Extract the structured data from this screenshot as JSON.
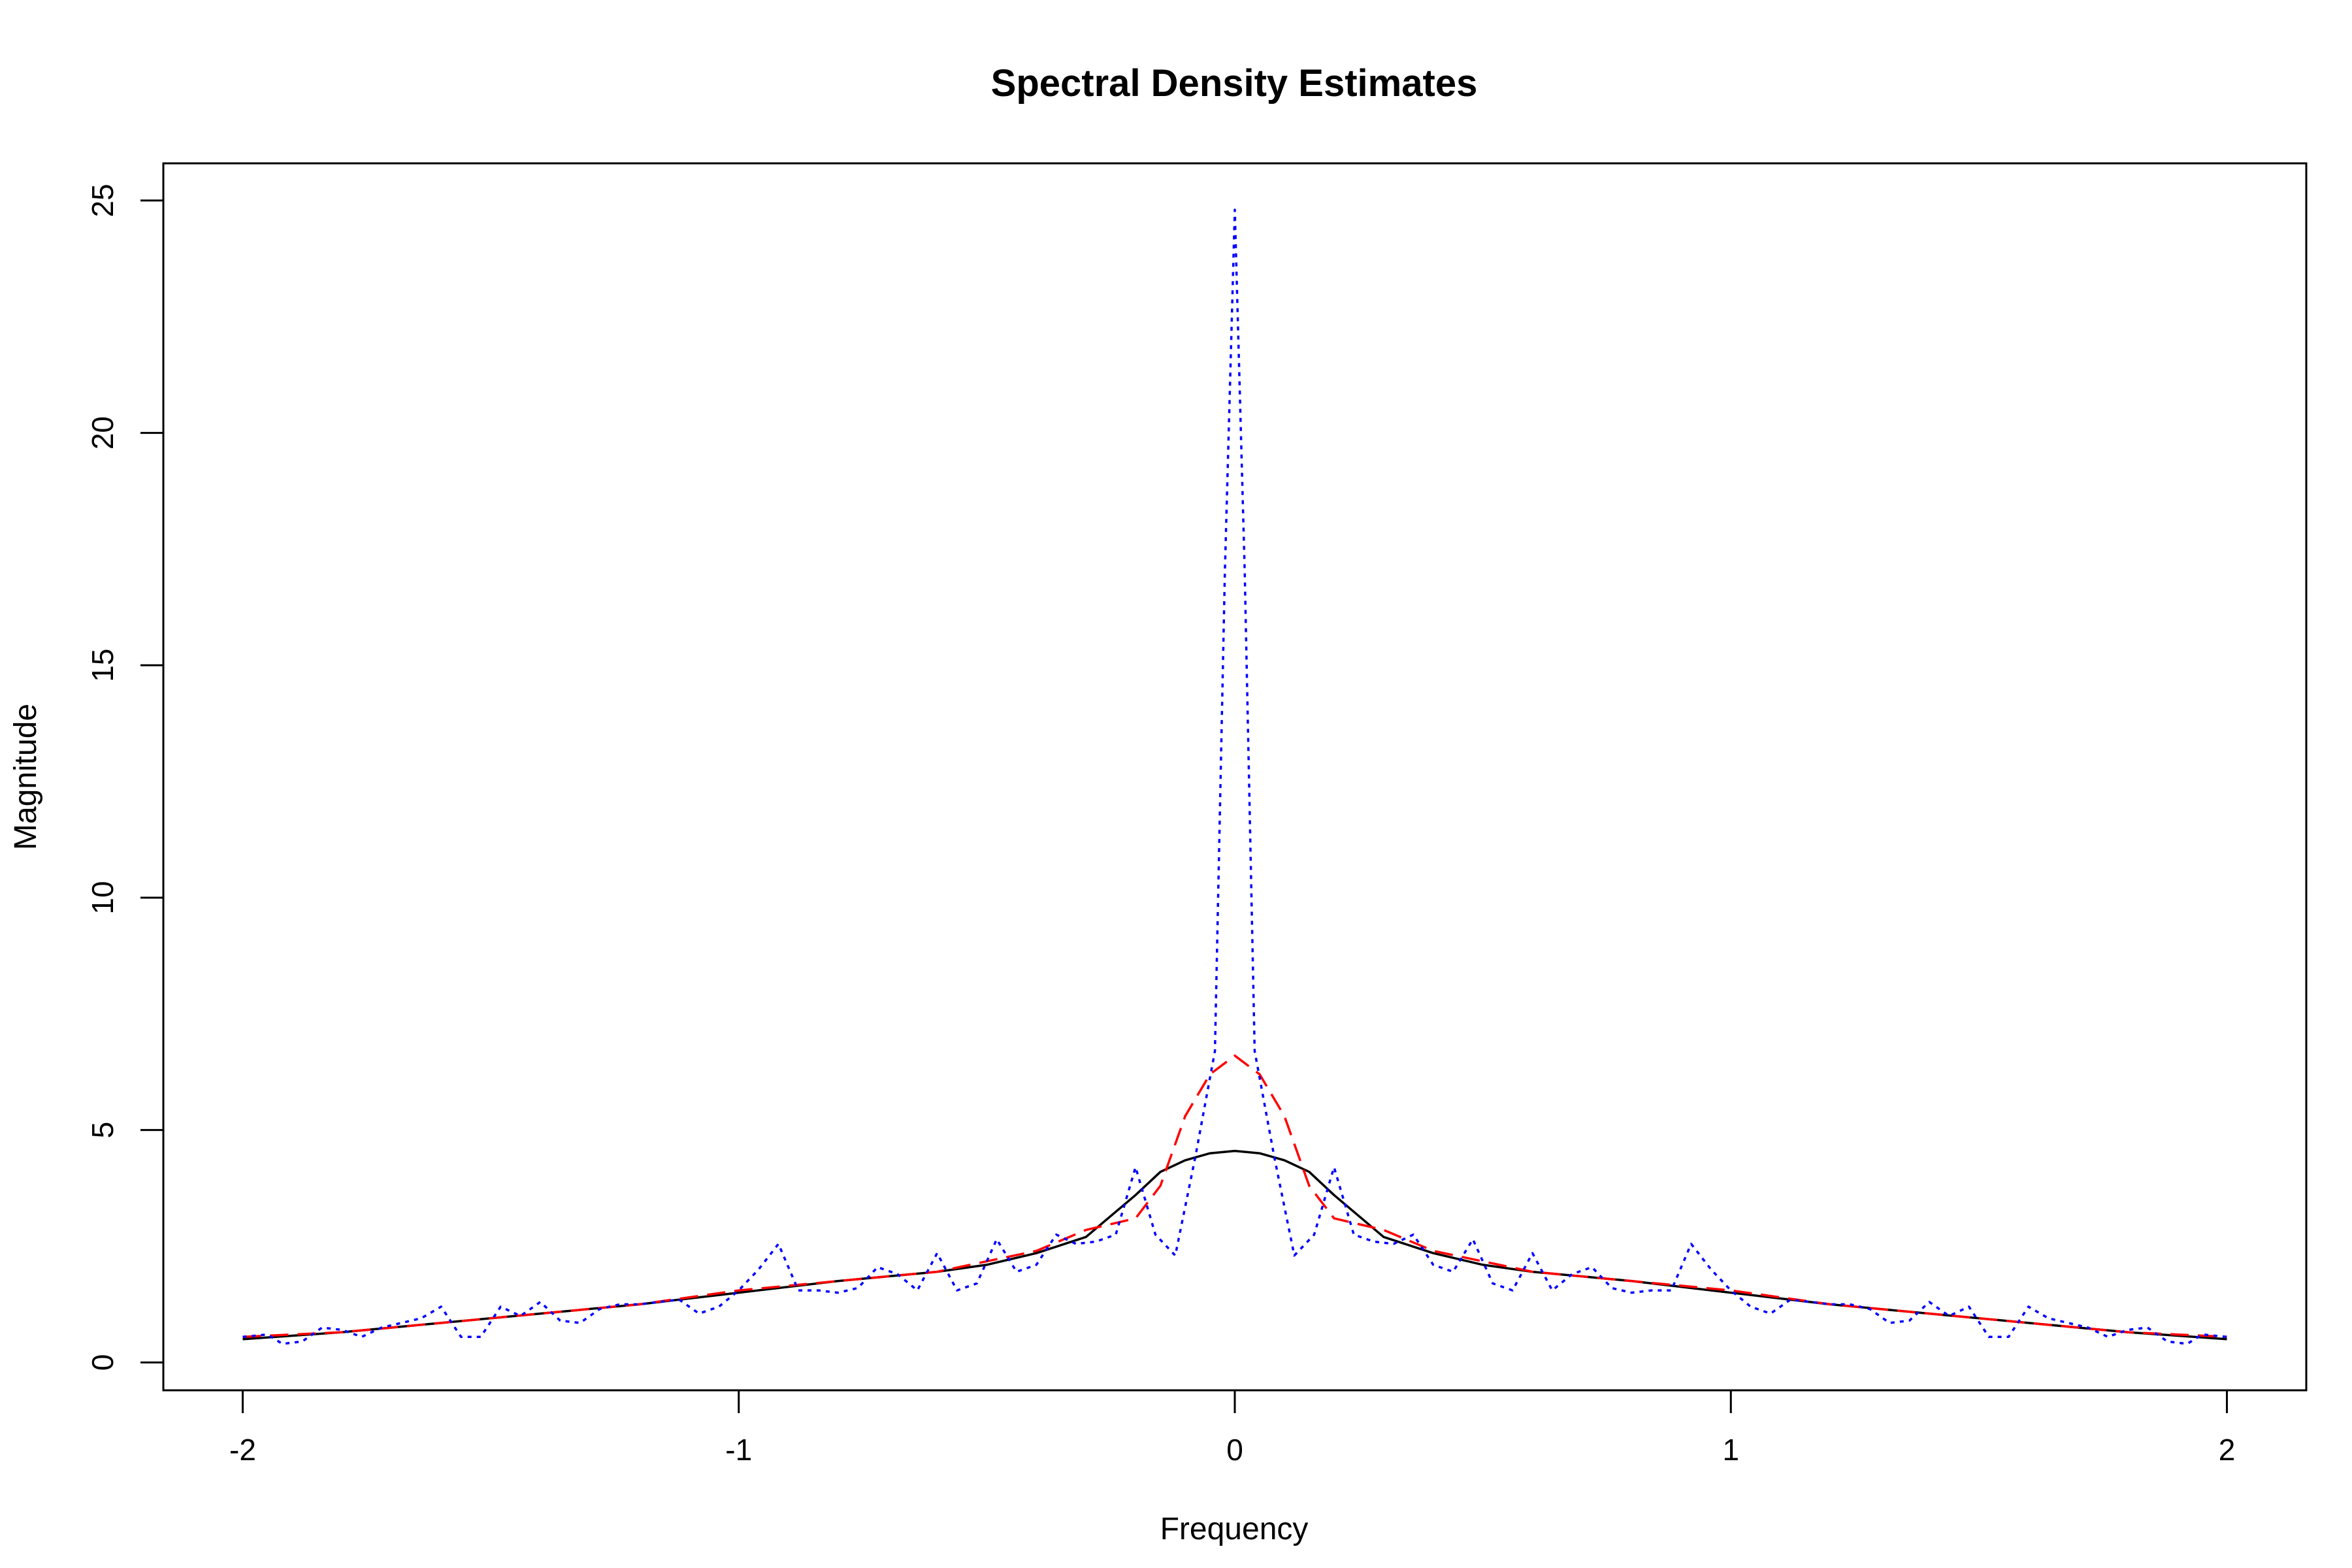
{
  "chart_data": {
    "type": "line",
    "title": "Spectral Density Estimates",
    "xlabel": "Frequency",
    "ylabel": "Magnitude",
    "xlim": [
      -2.16,
      2.16
    ],
    "ylim": [
      -0.6,
      25.8
    ],
    "xticks": [
      -2,
      -1,
      0,
      1,
      2
    ],
    "yticks": [
      0,
      5,
      10,
      15,
      20,
      25
    ],
    "grid": false,
    "legend": "none",
    "series": [
      {
        "color": "#000000",
        "style": "solid",
        "x": [
          -2,
          -1.8,
          -1.6,
          -1.4,
          -1.2,
          -1.0,
          -0.8,
          -0.6,
          -0.5,
          -0.4,
          -0.3,
          -0.2,
          -0.15,
          -0.1,
          -0.05,
          0,
          0.05,
          0.1,
          0.15,
          0.2,
          0.3,
          0.4,
          0.5,
          0.6,
          0.8,
          1.0,
          1.2,
          1.4,
          1.6,
          1.8,
          2
        ],
        "y": [
          0.5,
          0.65,
          0.85,
          1.05,
          1.25,
          1.5,
          1.75,
          1.95,
          2.1,
          2.35,
          2.7,
          3.6,
          4.1,
          4.35,
          4.5,
          4.55,
          4.5,
          4.35,
          4.1,
          3.6,
          2.7,
          2.35,
          2.1,
          1.95,
          1.75,
          1.5,
          1.25,
          1.05,
          0.85,
          0.65,
          0.5
        ]
      },
      {
        "color": "#ff0000",
        "style": "dashed",
        "x": [
          -2,
          -1.8,
          -1.6,
          -1.4,
          -1.2,
          -1.0,
          -0.8,
          -0.6,
          -0.4,
          -0.3,
          -0.2,
          -0.15,
          -0.1,
          -0.05,
          0,
          0.05,
          0.1,
          0.15,
          0.2,
          0.3,
          0.4,
          0.6,
          0.8,
          1.0,
          1.2,
          1.4,
          1.6,
          1.8,
          2
        ],
        "y": [
          0.55,
          0.65,
          0.85,
          1.05,
          1.25,
          1.55,
          1.75,
          1.95,
          2.4,
          2.85,
          3.1,
          3.8,
          5.3,
          6.2,
          6.6,
          6.2,
          5.3,
          3.8,
          3.1,
          2.85,
          2.4,
          1.95,
          1.75,
          1.55,
          1.25,
          1.05,
          0.85,
          0.65,
          0.55
        ]
      },
      {
        "color": "#0000ff",
        "style": "dotted",
        "x": [
          -2,
          -1.95,
          -1.92,
          -1.88,
          -1.84,
          -1.8,
          -1.76,
          -1.72,
          -1.68,
          -1.64,
          -1.6,
          -1.56,
          -1.52,
          -1.48,
          -1.44,
          -1.4,
          -1.36,
          -1.32,
          -1.28,
          -1.24,
          -1.2,
          -1.16,
          -1.12,
          -1.08,
          -1.04,
          -1.0,
          -0.96,
          -0.92,
          -0.88,
          -0.84,
          -0.8,
          -0.76,
          -0.72,
          -0.68,
          -0.64,
          -0.6,
          -0.56,
          -0.52,
          -0.48,
          -0.44,
          -0.4,
          -0.36,
          -0.32,
          -0.28,
          -0.24,
          -0.2,
          -0.16,
          -0.12,
          -0.08,
          -0.04,
          -0.02,
          0,
          0.02,
          0.04,
          0.08,
          0.12,
          0.16,
          0.2,
          0.24,
          0.28,
          0.32,
          0.36,
          0.4,
          0.44,
          0.48,
          0.52,
          0.56,
          0.6,
          0.64,
          0.68,
          0.72,
          0.76,
          0.8,
          0.84,
          0.88,
          0.92,
          0.96,
          1.0,
          1.04,
          1.08,
          1.12,
          1.16,
          1.2,
          1.24,
          1.28,
          1.32,
          1.36,
          1.4,
          1.44,
          1.48,
          1.52,
          1.56,
          1.6,
          1.64,
          1.68,
          1.72,
          1.76,
          1.8,
          1.84,
          1.88,
          1.92,
          1.95,
          2
        ],
        "y": [
          0.55,
          0.6,
          0.4,
          0.45,
          0.75,
          0.7,
          0.55,
          0.75,
          0.85,
          0.95,
          1.2,
          0.55,
          0.55,
          1.2,
          1.0,
          1.3,
          0.9,
          0.85,
          1.15,
          1.25,
          1.25,
          1.3,
          1.35,
          1.05,
          1.2,
          1.55,
          2.0,
          2.55,
          1.55,
          1.55,
          1.5,
          1.6,
          2.05,
          1.9,
          1.55,
          2.35,
          1.55,
          1.7,
          2.65,
          1.95,
          2.1,
          2.75,
          2.55,
          2.6,
          2.75,
          4.2,
          2.75,
          2.3,
          4.4,
          6.7,
          17.0,
          24.8,
          17.0,
          6.7,
          4.4,
          2.3,
          2.75,
          4.2,
          2.75,
          2.6,
          2.55,
          2.75,
          2.1,
          1.95,
          2.65,
          1.7,
          1.55,
          2.35,
          1.55,
          1.9,
          2.05,
          1.6,
          1.5,
          1.55,
          1.55,
          2.55,
          2.0,
          1.55,
          1.2,
          1.05,
          1.35,
          1.3,
          1.25,
          1.25,
          1.15,
          0.85,
          0.9,
          1.3,
          1.0,
          1.2,
          0.55,
          0.55,
          1.2,
          0.95,
          0.85,
          0.75,
          0.55,
          0.7,
          0.75,
          0.45,
          0.4,
          0.6,
          0.55
        ]
      }
    ]
  }
}
